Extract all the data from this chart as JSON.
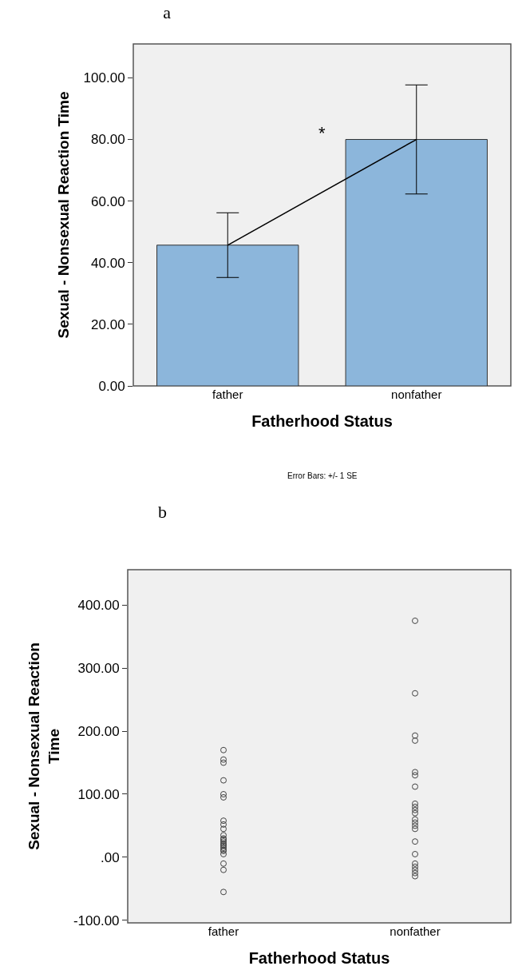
{
  "chart_data": [
    {
      "type": "bar",
      "title": "a",
      "xlabel": "Fatherhood Status",
      "ylabel": "Sexual - Nonsexual Reaction Time",
      "categories": [
        "father",
        "nonfather"
      ],
      "series": [
        {
          "color": "#8cb6db",
          "values": [
            45.7,
            80.0
          ],
          "errors": [
            10.5,
            17.7
          ]
        },
        {
          "type": "line",
          "color": "#000000",
          "values": [
            45.7,
            80.0
          ]
        }
      ],
      "ylim": [
        0,
        111
      ],
      "yticks": [
        {
          "value": 0,
          "label": "0.00"
        },
        {
          "value": 20,
          "label": "20.00"
        },
        {
          "value": 40,
          "label": "40.00"
        },
        {
          "value": 60,
          "label": "60.00"
        },
        {
          "value": 80,
          "label": "80.00"
        },
        {
          "value": 100,
          "label": "100.00"
        }
      ],
      "grid": false,
      "marker": "none",
      "annotations": [
        "*",
        "Error Bars: +/- 1 SE"
      ]
    },
    {
      "type": "scatter",
      "title": "b",
      "xlabel": "Fatherhood Status",
      "ylabel": "Sexual - Nonsexual Reaction\nTime",
      "categories": [
        "father",
        "nonfather"
      ],
      "series": [
        {
          "color": "#444444",
          "x": [
            "father",
            "father",
            "father",
            "father",
            "father",
            "father",
            "father",
            "father",
            "father",
            "father",
            "father",
            "father",
            "father",
            "father",
            "father",
            "father",
            "father",
            "father",
            "father",
            "father",
            "father",
            "father",
            "father"
          ],
          "values": [
            170,
            155,
            150,
            122,
            100,
            95,
            58,
            52,
            45,
            35,
            30,
            28,
            25,
            22,
            20,
            18,
            15,
            12,
            10,
            5,
            -10,
            -20,
            -55
          ]
        },
        {
          "color": "#444444",
          "x": [
            "nonfather",
            "nonfather",
            "nonfather",
            "nonfather",
            "nonfather",
            "nonfather",
            "nonfather",
            "nonfather",
            "nonfather",
            "nonfather",
            "nonfather",
            "nonfather",
            "nonfather",
            "nonfather",
            "nonfather",
            "nonfather",
            "nonfather",
            "nonfather",
            "nonfather",
            "nonfather",
            "nonfather",
            "nonfather"
          ],
          "values": [
            375,
            260,
            193,
            185,
            135,
            130,
            112,
            85,
            80,
            75,
            70,
            60,
            55,
            50,
            45,
            25,
            5,
            -10,
            -15,
            -20,
            -25,
            -30
          ]
        }
      ],
      "ylim": [
        -104,
        456
      ],
      "yticks": [
        {
          "value": -100,
          "label": "-100.00"
        },
        {
          "value": 0,
          "label": ".00"
        },
        {
          "value": 100,
          "label": "100.00"
        },
        {
          "value": 200,
          "label": "200.00"
        },
        {
          "value": 300,
          "label": "300.00"
        },
        {
          "value": 400,
          "label": "400.00"
        }
      ],
      "grid": false,
      "marker": "circle"
    }
  ]
}
